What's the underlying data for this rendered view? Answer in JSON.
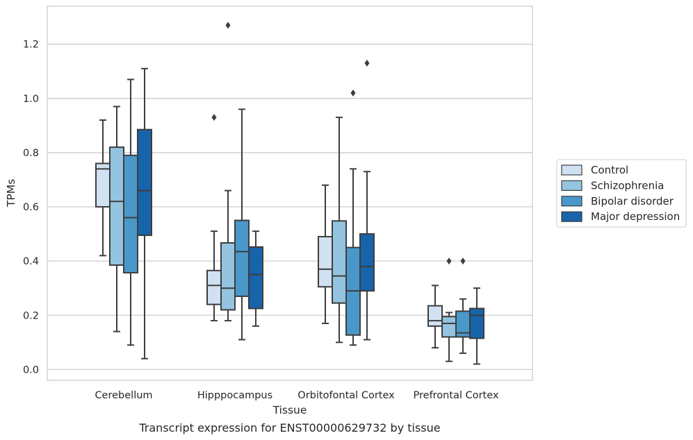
{
  "caption": "Transcript expression for ENST00000629732 by tissue",
  "chart_data": {
    "type": "box",
    "xlabel": "Tissue",
    "ylabel": "TPMs",
    "ylim": [
      -0.04,
      1.34
    ],
    "yticks": [
      0.0,
      0.2,
      0.4,
      0.6,
      0.8,
      1.0,
      1.2
    ],
    "ytick_labels": [
      "0.0",
      "0.2",
      "0.4",
      "0.6",
      "0.8",
      "1.0",
      "1.2"
    ],
    "grid": "horizontal",
    "legend_position": "right",
    "categories": [
      "Cerebellum",
      "Hipppocampus",
      "Orbitofontal Cortex",
      "Prefrontal Cortex"
    ],
    "series": [
      {
        "name": "Control",
        "color": "#d0e1f2",
        "boxes": [
          {
            "whislo": 0.42,
            "q1": 0.6,
            "med": 0.74,
            "q3": 0.76,
            "whishi": 0.92,
            "fliers": []
          },
          {
            "whislo": 0.18,
            "q1": 0.24,
            "med": 0.31,
            "q3": 0.365,
            "whishi": 0.51,
            "fliers": [
              0.93
            ]
          },
          {
            "whislo": 0.17,
            "q1": 0.305,
            "med": 0.37,
            "q3": 0.49,
            "whishi": 0.68,
            "fliers": []
          },
          {
            "whislo": 0.08,
            "q1": 0.16,
            "med": 0.18,
            "q3": 0.235,
            "whishi": 0.31,
            "fliers": []
          }
        ]
      },
      {
        "name": "Schizophrenia",
        "color": "#94c4df",
        "boxes": [
          {
            "whislo": 0.14,
            "q1": 0.385,
            "med": 0.62,
            "q3": 0.82,
            "whishi": 0.97,
            "fliers": []
          },
          {
            "whislo": 0.18,
            "q1": 0.22,
            "med": 0.3,
            "q3": 0.467,
            "whishi": 0.66,
            "fliers": [
              1.27
            ]
          },
          {
            "whislo": 0.1,
            "q1": 0.245,
            "med": 0.345,
            "q3": 0.548,
            "whishi": 0.93,
            "fliers": []
          },
          {
            "whislo": 0.03,
            "q1": 0.12,
            "med": 0.17,
            "q3": 0.195,
            "whishi": 0.21,
            "fliers": [
              0.4
            ]
          }
        ]
      },
      {
        "name": "Bipolar disorder",
        "color": "#4a98c9",
        "boxes": [
          {
            "whislo": 0.09,
            "q1": 0.357,
            "med": 0.56,
            "q3": 0.79,
            "whishi": 1.07,
            "fliers": []
          },
          {
            "whislo": 0.11,
            "q1": 0.27,
            "med": 0.435,
            "q3": 0.55,
            "whishi": 0.96,
            "fliers": []
          },
          {
            "whislo": 0.09,
            "q1": 0.127,
            "med": 0.29,
            "q3": 0.45,
            "whishi": 0.74,
            "fliers": [
              1.02
            ]
          },
          {
            "whislo": 0.06,
            "q1": 0.12,
            "med": 0.135,
            "q3": 0.215,
            "whishi": 0.26,
            "fliers": [
              0.4
            ]
          }
        ]
      },
      {
        "name": "Major depression",
        "color": "#1764ab",
        "boxes": [
          {
            "whislo": 0.04,
            "q1": 0.495,
            "med": 0.66,
            "q3": 0.885,
            "whishi": 1.11,
            "fliers": []
          },
          {
            "whislo": 0.16,
            "q1": 0.225,
            "med": 0.35,
            "q3": 0.452,
            "whishi": 0.51,
            "fliers": []
          },
          {
            "whislo": 0.11,
            "q1": 0.29,
            "med": 0.38,
            "q3": 0.5,
            "whishi": 0.73,
            "fliers": [
              1.13
            ]
          },
          {
            "whislo": 0.02,
            "q1": 0.115,
            "med": 0.2,
            "q3": 0.225,
            "whishi": 0.3,
            "fliers": []
          }
        ]
      }
    ]
  }
}
